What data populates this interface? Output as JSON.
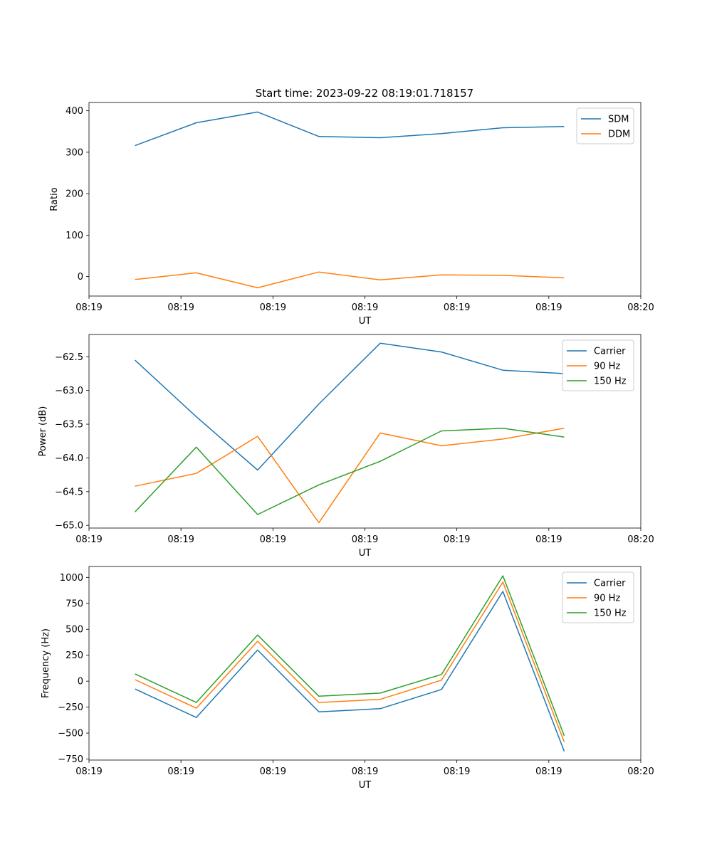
{
  "figure_title": "Start time: 2023-09-22 08:19:01.718157",
  "colors": {
    "blue": "#1f77b4",
    "orange": "#ff7f0e",
    "green": "#2ca02c"
  },
  "chart_data": [
    {
      "type": "line",
      "title": "Start time: 2023-09-22 08:19:01.718157",
      "xlabel": "UT",
      "ylabel": "Ratio",
      "x": [
        1,
        2,
        3,
        4,
        5,
        6,
        7,
        8
      ],
      "xlim": [
        0.25,
        9.25
      ],
      "xticks": [
        0.25,
        1.75,
        3.25,
        4.75,
        6.25,
        7.75,
        9.25
      ],
      "xtick_labels": [
        "08:19",
        "08:19",
        "08:19",
        "08:19",
        "08:19",
        "08:19",
        "08:20"
      ],
      "ylim": [
        -47,
        420
      ],
      "yticks": [
        0,
        100,
        200,
        300,
        400
      ],
      "ytick_labels": [
        "0",
        "100",
        "200",
        "300",
        "400"
      ],
      "legend_position": "top-right",
      "series": [
        {
          "name": "SDM",
          "color": "#1f77b4",
          "values": [
            316,
            371,
            397,
            338,
            335,
            345,
            359,
            362
          ]
        },
        {
          "name": "DDM",
          "color": "#ff7f0e",
          "values": [
            -7,
            9,
            -27,
            11,
            -8,
            4,
            3,
            -3
          ]
        }
      ]
    },
    {
      "type": "line",
      "title": "",
      "xlabel": "UT",
      "ylabel": "Power (dB)",
      "x": [
        1,
        2,
        3,
        4,
        5,
        6,
        7,
        8
      ],
      "xlim": [
        0.25,
        9.25
      ],
      "xticks": [
        0.25,
        1.75,
        3.25,
        4.75,
        6.25,
        7.75,
        9.25
      ],
      "xtick_labels": [
        "08:19",
        "08:19",
        "08:19",
        "08:19",
        "08:19",
        "08:19",
        "08:20"
      ],
      "ylim": [
        -65.04,
        -62.17
      ],
      "yticks": [
        -65.0,
        -64.5,
        -64.0,
        -63.5,
        -63.0,
        -62.5
      ],
      "ytick_labels": [
        "−65.0",
        "−64.5",
        "−64.0",
        "−63.5",
        "−63.0",
        "−62.5"
      ],
      "legend_position": "top-right",
      "series": [
        {
          "name": "Carrier",
          "color": "#1f77b4",
          "values": [
            -62.55,
            -63.39,
            -64.18,
            -63.2,
            -62.3,
            -62.43,
            -62.7,
            -62.75
          ]
        },
        {
          "name": "90 Hz",
          "color": "#ff7f0e",
          "values": [
            -64.42,
            -64.23,
            -63.68,
            -64.96,
            -63.63,
            -63.82,
            -63.72,
            -63.56
          ]
        },
        {
          "name": "150 Hz",
          "color": "#2ca02c",
          "values": [
            -64.8,
            -63.84,
            -64.84,
            -64.4,
            -64.05,
            -63.6,
            -63.56,
            -63.69
          ]
        }
      ]
    },
    {
      "type": "line",
      "title": "",
      "xlabel": "UT",
      "ylabel": "Frequency (Hz)",
      "x": [
        1,
        2,
        3,
        4,
        5,
        6,
        7,
        8
      ],
      "xlim": [
        0.25,
        9.25
      ],
      "xticks": [
        0.25,
        1.75,
        3.25,
        4.75,
        6.25,
        7.75,
        9.25
      ],
      "xtick_labels": [
        "08:19",
        "08:19",
        "08:19",
        "08:19",
        "08:19",
        "08:19",
        "08:20"
      ],
      "ylim": [
        -760,
        1105
      ],
      "yticks": [
        -750,
        -500,
        -250,
        0,
        250,
        500,
        750,
        1000
      ],
      "ytick_labels": [
        "−750",
        "−500",
        "−250",
        "0",
        "250",
        "500",
        "750",
        "1000"
      ],
      "legend_position": "top-right",
      "series": [
        {
          "name": "Carrier",
          "color": "#1f77b4",
          "values": [
            -75,
            -350,
            300,
            -295,
            -265,
            -80,
            865,
            -675
          ]
        },
        {
          "name": "90 Hz",
          "color": "#ff7f0e",
          "values": [
            15,
            -260,
            385,
            -205,
            -175,
            10,
            955,
            -585
          ]
        },
        {
          "name": "150 Hz",
          "color": "#2ca02c",
          "values": [
            70,
            -205,
            445,
            -145,
            -115,
            65,
            1015,
            -525
          ]
        }
      ]
    }
  ]
}
